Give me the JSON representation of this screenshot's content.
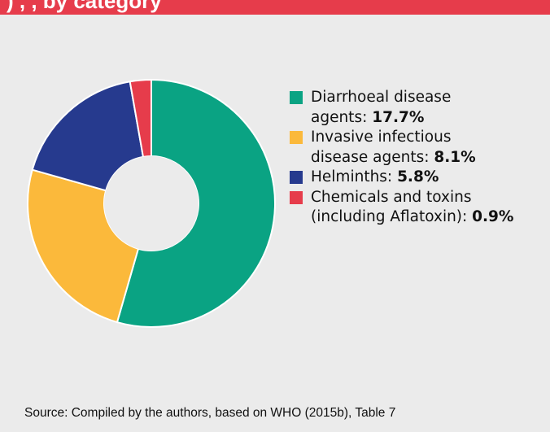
{
  "header": {
    "title_fragment": ") , ,   by category"
  },
  "chart_data": {
    "type": "pie",
    "donut": true,
    "slices": [
      {
        "label": "Diarrhoeal disease agents",
        "value_label": "17.7%",
        "value": 17.7,
        "color": "#0aa383"
      },
      {
        "label": "Invasive infectious disease agents",
        "value_label": "8.1%",
        "value": 8.1,
        "color": "#fbb93b"
      },
      {
        "label": "Helminths",
        "value_label": "5.8%",
        "value": 5.8,
        "color": "#263a8e"
      },
      {
        "label": "Chemicals and toxins (including Aflatoxin)",
        "value_label": "0.9%",
        "value": 0.9,
        "color": "#e63c4b"
      }
    ],
    "legend_position": "right"
  },
  "legend": {
    "items": [
      {
        "line1": "Diarrhoeal disease",
        "line2_text": "agents: ",
        "value": "17.7%"
      },
      {
        "line1": "Invasive infectious",
        "line2_text": "disease agents: ",
        "value": "8.1%"
      },
      {
        "line1": "",
        "line2_text": "Helminths: ",
        "value": "5.8%"
      },
      {
        "line1": "Chemicals and toxins",
        "line2_text": "(including Aflatoxin): ",
        "value": "0.9%"
      }
    ]
  },
  "source": {
    "text": "Source: Compiled by the authors, based on WHO (2015b), Table 7"
  }
}
